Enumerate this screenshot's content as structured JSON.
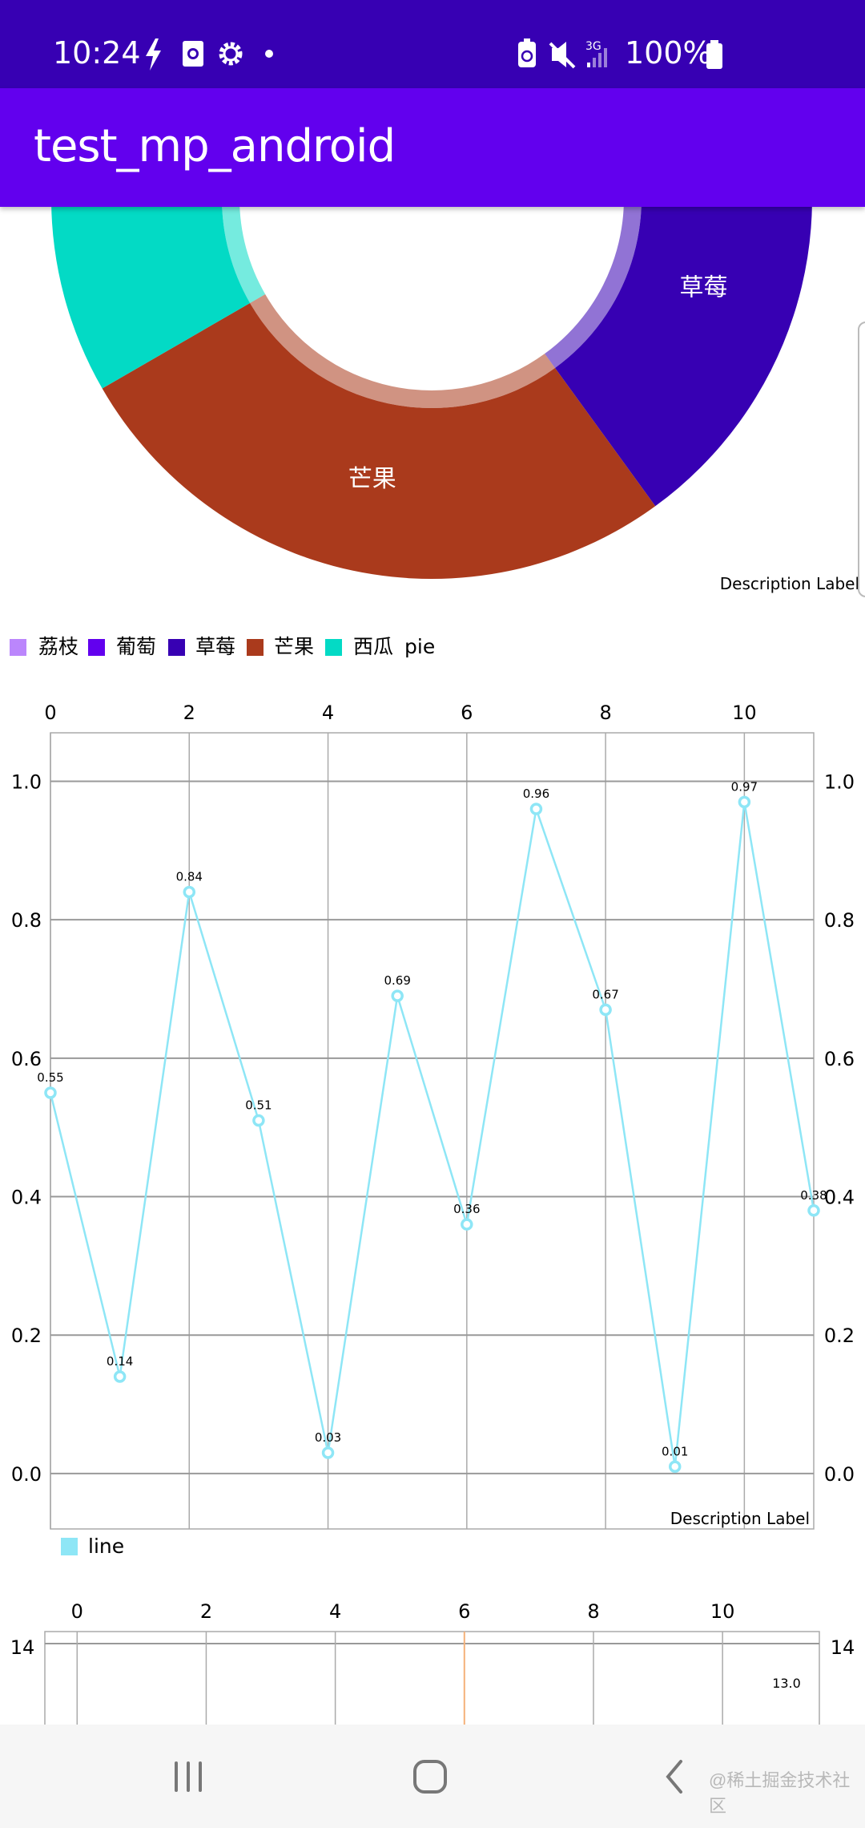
{
  "status_bar": {
    "time": "10:24",
    "left_icons": [
      "flash-icon",
      "screen-record-icon",
      "gear-icon",
      "dot-icon"
    ],
    "right_icons": [
      "battery-saver-icon",
      "mute-icon",
      "signal-3g-icon"
    ],
    "network": "3G",
    "battery_percent": "100%",
    "battery_level": 1.0
  },
  "app_bar": {
    "title": "test_mp_android"
  },
  "pie_chart": {
    "description": "Description Label",
    "legend_label": "pie",
    "colors": {
      "荔枝": "#bb86fc",
      "葡萄": "#6200ee",
      "草莓": "#3700b3",
      "芒果": "#aa3a1c",
      "西瓜": "#03dac5"
    }
  },
  "line_chart": {
    "description": "Description Label",
    "legend_label": "line",
    "line_color": "#8ee6f6"
  },
  "bar_chart_partial": {
    "y_tick_label": "14",
    "value_label": "13.0",
    "limit_line_color": "#f5b27a"
  },
  "nav_bar": {
    "icons": [
      "recent-apps-icon",
      "home-icon",
      "back-icon"
    ],
    "watermark": "@稀土掘金技术社区"
  },
  "chart_data": [
    {
      "type": "pie",
      "donut": true,
      "categories": [
        "荔枝",
        "葡萄",
        "草莓",
        "芒果",
        "西瓜"
      ],
      "values": [
        3,
        3,
        6,
        8,
        10
      ],
      "visible_slice_labels": [
        "草莓",
        "芒果"
      ],
      "series_name": "pie",
      "legend": "bottom-left",
      "description": "Description Label"
    },
    {
      "type": "line",
      "x": [
        0,
        1,
        2,
        3,
        4,
        5,
        6,
        7,
        8,
        9,
        10,
        11
      ],
      "series": [
        {
          "name": "line",
          "values": [
            0.55,
            0.14,
            0.84,
            0.51,
            0.03,
            0.69,
            0.36,
            0.96,
            0.67,
            0.01,
            0.97,
            0.38
          ]
        }
      ],
      "data_labels": [
        "0.55",
        "0.14",
        "0.84",
        "0.51",
        "0.03",
        "0.69",
        "0.36",
        "0.96",
        "0.67",
        "0.01",
        "0.97",
        "0.38"
      ],
      "x_ticks": [
        "0",
        "2",
        "4",
        "6",
        "8",
        "10"
      ],
      "y_ticks": [
        "0.0",
        "0.2",
        "0.4",
        "0.6",
        "0.8",
        "1.0"
      ],
      "xlim": [
        0,
        11
      ],
      "ylim": [
        -0.08,
        1.07
      ],
      "x_axis_position": "top",
      "y_axis": "both-sides",
      "grid": true,
      "legend": "bottom-left",
      "description": "Description Label"
    },
    {
      "type": "bar",
      "partially_visible": true,
      "x_ticks": [
        "0",
        "2",
        "4",
        "6",
        "8",
        "10"
      ],
      "y_ticks": [
        "14"
      ],
      "xlim": [
        -0.5,
        11.5
      ],
      "points": [
        {
          "x": 11,
          "y": 13.0,
          "label": "13.0"
        }
      ],
      "limit_line_x": 6,
      "grid": true
    }
  ]
}
